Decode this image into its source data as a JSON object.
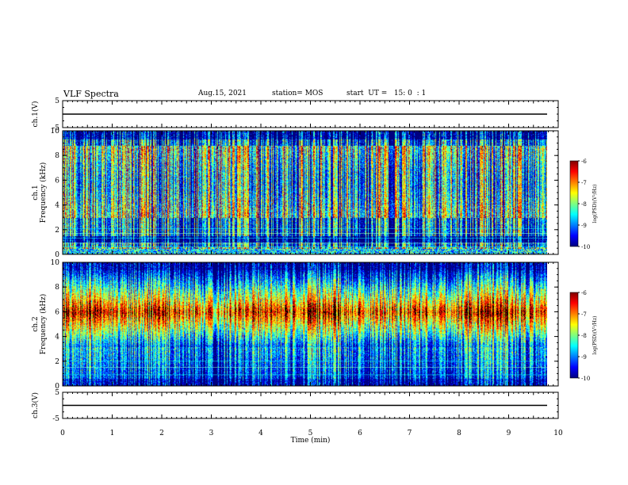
{
  "header": {
    "title": "VLF Spectra",
    "date": "Aug.15, 2021",
    "station": "station= MOS",
    "start_ut": "start  UT =   15: 0  : 1"
  },
  "chart_data": [
    {
      "type": "line",
      "title": "",
      "ylabel": "ch.1(V)",
      "ylim": [
        -5,
        5
      ],
      "y_ticks": [
        "5",
        "-5"
      ],
      "series": [
        {
          "values": [
            0
          ]
        }
      ]
    },
    {
      "type": "heatmap",
      "ylabel_channel": "ch.1",
      "ylabel": "Frequency (kHz)",
      "ylim": [
        0,
        10
      ],
      "y_ticks": [
        "0",
        "2",
        "4",
        "6",
        "8",
        "10"
      ],
      "xlim": [
        0,
        10
      ],
      "colorbar": {
        "label": "log(PSD)(V²/Hz)",
        "range": [
          -10,
          -6
        ],
        "ticks": [
          "-6",
          "-7",
          "-8",
          "-9",
          "-10"
        ]
      }
    },
    {
      "type": "heatmap",
      "ylabel_channel": "ch.2",
      "ylabel": "Frequency (kHz)",
      "ylim": [
        0,
        10
      ],
      "y_ticks": [
        "0",
        "2",
        "4",
        "6",
        "8",
        "10"
      ],
      "xlim": [
        0,
        10
      ],
      "colorbar": {
        "label": "log(PSD)(V²/Hz)",
        "range": [
          -10,
          -6
        ],
        "ticks": [
          "-6",
          "-7",
          "-8",
          "-9",
          "-10"
        ]
      }
    },
    {
      "type": "line",
      "ylabel": "ch.3(V)",
      "ylim": [
        -5,
        5
      ],
      "y_ticks": [
        "5",
        "-5"
      ],
      "series": [
        {
          "values": [
            0
          ]
        }
      ]
    }
  ],
  "x_axis": {
    "label": "Time  (min)",
    "range": [
      0,
      10
    ],
    "ticks": [
      "0",
      "1",
      "2",
      "3",
      "4",
      "5",
      "6",
      "7",
      "8",
      "9",
      "10"
    ]
  },
  "colors": {
    "jet": [
      "#00007f",
      "#0000ff",
      "#007fff",
      "#00ffff",
      "#7fff7f",
      "#ffff00",
      "#ff7f00",
      "#ff0000",
      "#7f0000"
    ]
  }
}
